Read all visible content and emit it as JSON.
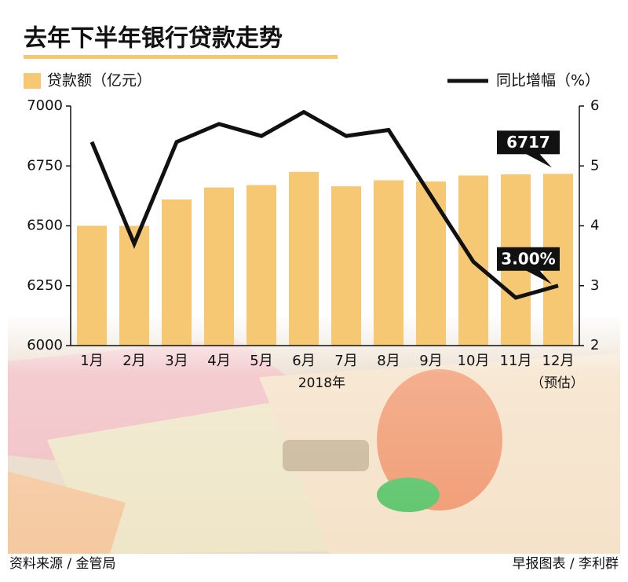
{
  "chart_data": {
    "type": "bar_line",
    "title": "去年下半年银行贷款走势",
    "categories": [
      "1月",
      "2月",
      "3月",
      "4月",
      "5月",
      "6月",
      "7月",
      "8月",
      "9月",
      "10月",
      "11月",
      "12月"
    ],
    "x_note": "（预估）",
    "xlabel": "2018年",
    "series": [
      {
        "name": "贷款额（亿元）",
        "type": "bar",
        "color": "#f7c873",
        "values": [
          6500,
          6500,
          6610,
          6660,
          6670,
          6725,
          6665,
          6690,
          6685,
          6710,
          6715,
          6717
        ],
        "value_labels": [
          null,
          null,
          null,
          null,
          null,
          null,
          null,
          null,
          null,
          null,
          null,
          "6717"
        ]
      },
      {
        "name": "同比增幅（%）",
        "type": "line",
        "axis": "y2",
        "color": "#111111",
        "values": [
          5.4,
          3.7,
          5.4,
          5.7,
          5.5,
          5.9,
          5.5,
          5.6,
          4.5,
          3.4,
          2.8,
          3.0
        ],
        "value_labels": [
          null,
          null,
          null,
          null,
          null,
          null,
          null,
          null,
          null,
          null,
          null,
          "3.00%"
        ]
      }
    ],
    "ylim": [
      6000,
      7000
    ],
    "yticks": [
      6000,
      6250,
      6500,
      6750,
      7000
    ],
    "y2lim": [
      2,
      6
    ],
    "y2ticks": [
      2,
      3,
      4,
      5,
      6
    ]
  },
  "footer": {
    "source": "资料来源 / 金管局",
    "credit": "早报图表 / 李利群"
  }
}
